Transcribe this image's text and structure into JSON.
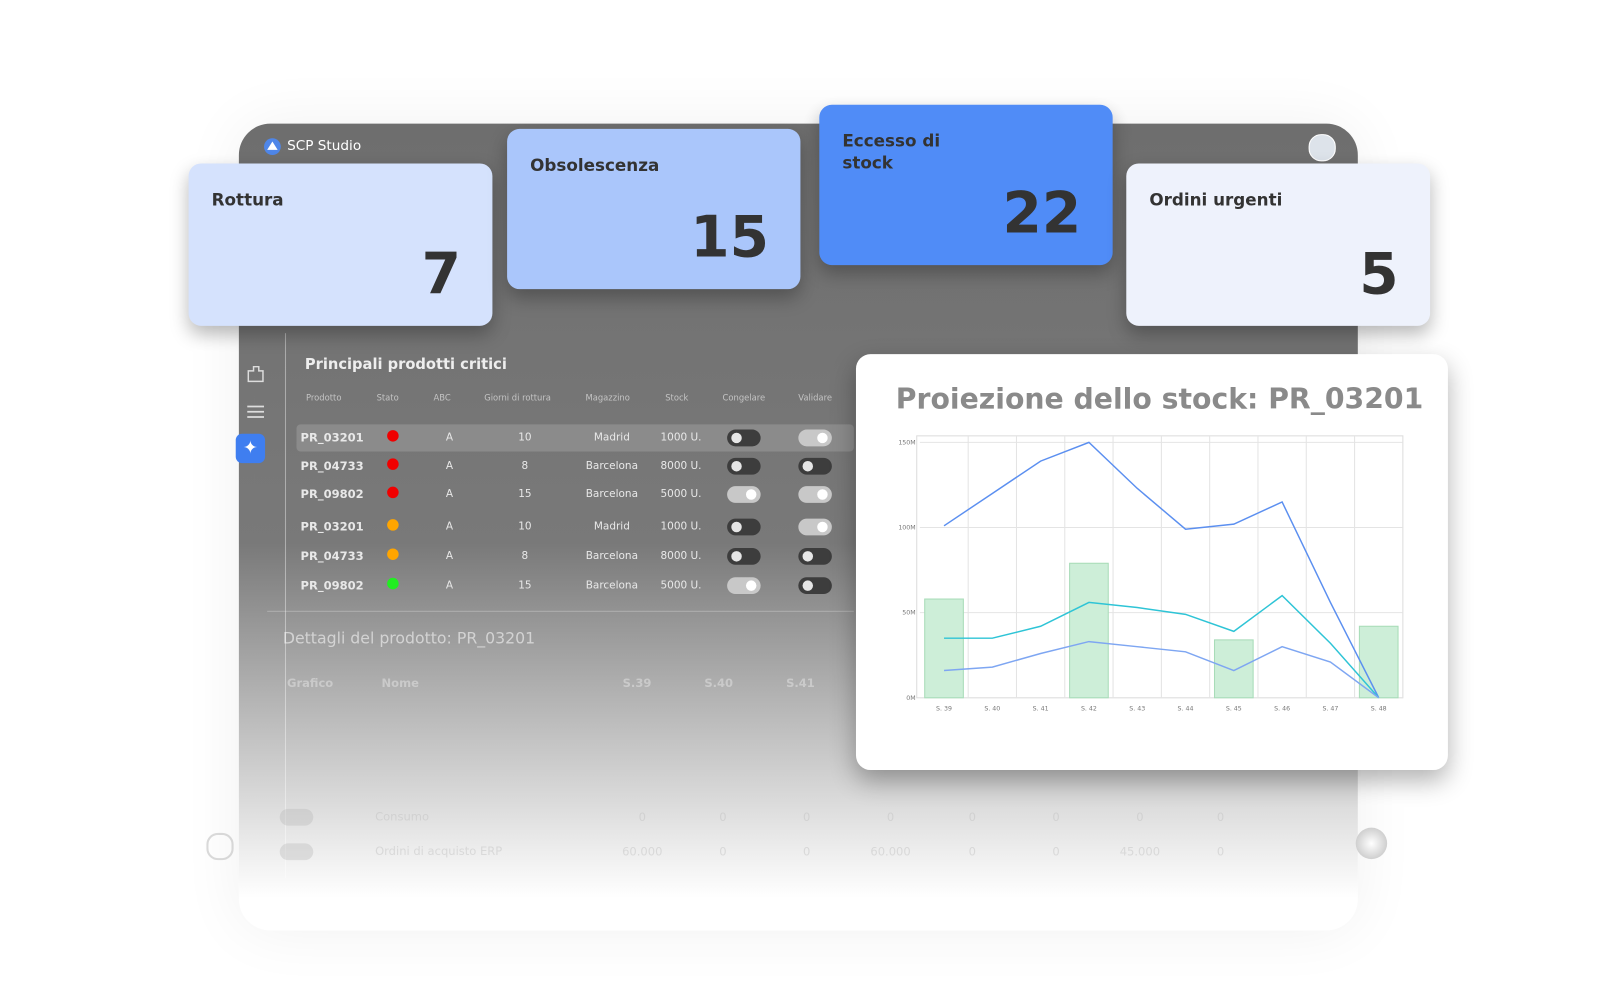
{
  "app": {
    "name": "SCP Studio"
  },
  "kpis": [
    {
      "label": "Rottura",
      "value": 7,
      "color": "#d5e2fd"
    },
    {
      "label": "Obsolescenza",
      "value": 15,
      "color": "#aac6fb"
    },
    {
      "label": "Eccesso di stock",
      "value": 22,
      "color": "#508cf7"
    },
    {
      "label": "Ordini urgenti",
      "value": 5,
      "color": "#eef2fc"
    }
  ],
  "table": {
    "title": "Principali prodotti critici",
    "columns": [
      "Prodotto",
      "Stato",
      "ABC",
      "Giorni di rottura",
      "Magazzino",
      "Stock",
      "Congelare",
      "Validare"
    ],
    "rows": [
      {
        "prodotto": "PR_03201",
        "stato": "#f00000",
        "abc": "A",
        "giorni": 10,
        "magazzino": "Madrid",
        "stock": "1000 U.",
        "congelare": false,
        "validare": true
      },
      {
        "prodotto": "PR_04733",
        "stato": "#f00000",
        "abc": "A",
        "giorni": 8,
        "magazzino": "Barcelona",
        "stock": "8000 U.",
        "congelare": false,
        "validare": false
      },
      {
        "prodotto": "PR_09802",
        "stato": "#f00000",
        "abc": "A",
        "giorni": 15,
        "magazzino": "Barcelona",
        "stock": "5000 U.",
        "congelare": true,
        "validare": true
      },
      {
        "prodotto": "PR_03201",
        "stato": "#ffa500",
        "abc": "A",
        "giorni": 10,
        "magazzino": "Madrid",
        "stock": "1000 U.",
        "congelare": false,
        "validare": true
      },
      {
        "prodotto": "PR_04733",
        "stato": "#ffa500",
        "abc": "A",
        "giorni": 8,
        "magazzino": "Barcelona",
        "stock": "8000 U.",
        "congelare": false,
        "validare": false
      },
      {
        "prodotto": "PR_09802",
        "stato": "#22ee22",
        "abc": "A",
        "giorni": 15,
        "magazzino": "Barcelona",
        "stock": "5000 U.",
        "congelare": true,
        "validare": false
      }
    ]
  },
  "details": {
    "title": "Dettagli del prodotto: PR_03201",
    "columns": [
      "Grafico",
      "Nome",
      "S.39",
      "S.40",
      "S.41"
    ],
    "rows": [
      {
        "name": "Consumo",
        "values": [
          "0",
          "0",
          "0",
          "0",
          "0",
          "0",
          "0",
          "0"
        ]
      },
      {
        "name": "Ordini di acquisto ERP",
        "values": [
          "60.000",
          "0",
          "0",
          "60.000",
          "0",
          "0",
          "45.000",
          "0"
        ]
      }
    ]
  },
  "chart_data": {
    "type": "line",
    "title": "Proiezione dello stock: PR_03201",
    "categories": [
      "S. 39",
      "S. 40",
      "S. 41",
      "S. 42",
      "S. 43",
      "S. 44",
      "S. 45",
      "S. 46",
      "S. 47",
      "S. 48"
    ],
    "ylim": [
      0,
      160
    ],
    "yticks": [
      {
        "value": 0,
        "label": "0M"
      },
      {
        "value": 50,
        "label": "50M"
      },
      {
        "value": 100,
        "label": "100M"
      },
      {
        "value": 150,
        "label": "150M"
      }
    ],
    "grid": true,
    "series": [
      {
        "type": "bar",
        "color": "#cdeed8",
        "values": [
          58,
          null,
          null,
          79,
          null,
          null,
          34,
          null,
          null,
          42
        ]
      },
      {
        "color": "#5b8ff0",
        "values": [
          101,
          120,
          139,
          150,
          123,
          99,
          102,
          115,
          56,
          0
        ]
      },
      {
        "color": "#2ec4d6",
        "values": [
          35,
          35,
          42,
          56,
          53,
          49,
          39,
          60,
          32,
          0
        ]
      },
      {
        "color": "#7ea6f2",
        "values": [
          16,
          18,
          26,
          33,
          30,
          27,
          16,
          30,
          21,
          0
        ]
      }
    ]
  }
}
